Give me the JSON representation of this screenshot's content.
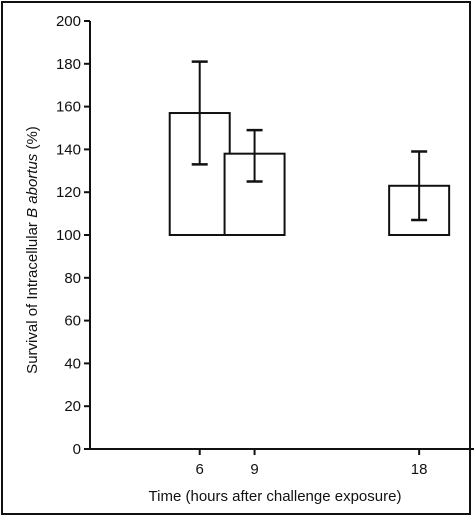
{
  "chart_data": {
    "type": "bar",
    "title": "",
    "xlabel": "Time (hours after challenge exposure)",
    "ylabel_parts": [
      {
        "text": "Survival of Intracellular ",
        "italic": false
      },
      {
        "text": "B abortus",
        "italic": true
      },
      {
        "text": " (%)",
        "italic": false
      }
    ],
    "x_scale": "linear-time",
    "xlim": [
      0,
      21
    ],
    "ylim": [
      0,
      200
    ],
    "yticks": [
      0,
      20,
      40,
      60,
      80,
      100,
      120,
      140,
      160,
      180,
      200
    ],
    "xticks": [
      6,
      9,
      18
    ],
    "baseline": 100,
    "series": [
      {
        "x": [
          6,
          9,
          18
        ],
        "values": [
          157,
          138,
          123
        ],
        "error_low": [
          133,
          125,
          107
        ],
        "error_high": [
          181,
          149,
          139
        ]
      }
    ],
    "grid": false,
    "legend": "none",
    "colors": {
      "ink": "#111111",
      "fill": "#ffffff"
    }
  }
}
